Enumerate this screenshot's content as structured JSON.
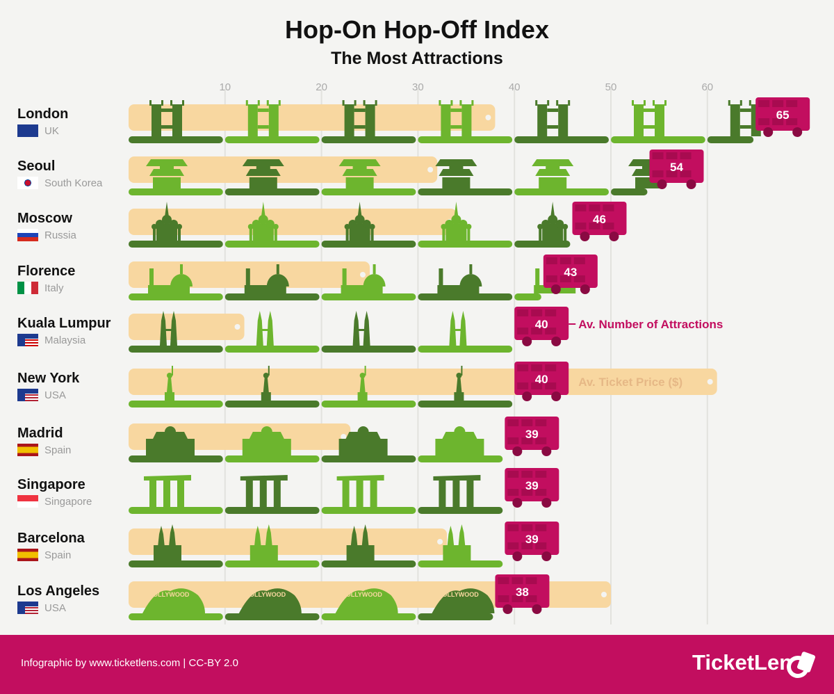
{
  "header": {
    "title": "Hop-On Hop-Off Index",
    "subtitle": "The Most Attractions"
  },
  "legend": {
    "attractions_label": "Av. Number of Attractions",
    "price_label": "Av. Ticket Price ($)"
  },
  "colors": {
    "green_dark": "#4a7a2b",
    "green_light": "#6db52e",
    "ticket": "#f8d7a0",
    "bus": "#c20e5f",
    "footer": "#c20e5f",
    "grid": "#e2e2de",
    "axis_text": "#aaaaaa"
  },
  "chart_data": {
    "type": "bar",
    "title": "Hop-On Hop-Off Index",
    "subtitle": "The Most Attractions",
    "x_ticks": [
      10,
      20,
      30,
      40,
      50,
      60
    ],
    "xlim": [
      0,
      65
    ],
    "grid": true,
    "categories": [
      "London",
      "Seoul",
      "Moscow",
      "Florence",
      "Kuala Lumpur",
      "New York",
      "Madrid",
      "Singapore",
      "Barcelona",
      "Los Angeles"
    ],
    "series": [
      {
        "name": "Av. Number of Attractions",
        "values": [
          65,
          54,
          46,
          43,
          40,
          40,
          39,
          39,
          39,
          38
        ]
      },
      {
        "name": "Av. Ticket Price ($)",
        "values": [
          38,
          32,
          34,
          25,
          12,
          61,
          23,
          0,
          33,
          50
        ]
      }
    ]
  },
  "rows": [
    {
      "city": "London",
      "country": "UK",
      "flag": "uk",
      "landmark": "tower-bridge"
    },
    {
      "city": "Seoul",
      "country": "South Korea",
      "flag": "kr",
      "landmark": "gate"
    },
    {
      "city": "Moscow",
      "country": "Russia",
      "flag": "ru",
      "landmark": "kremlin"
    },
    {
      "city": "Florence",
      "country": "Italy",
      "flag": "it",
      "landmark": "duomo"
    },
    {
      "city": "Kuala Lumpur",
      "country": "Malaysia",
      "flag": "my",
      "landmark": "twin-towers"
    },
    {
      "city": "New York",
      "country": "USA",
      "flag": "us",
      "landmark": "liberty"
    },
    {
      "city": "Madrid",
      "country": "Spain",
      "flag": "es",
      "landmark": "puerta"
    },
    {
      "city": "Singapore",
      "country": "Singapore",
      "flag": "sg",
      "landmark": "marina-bay"
    },
    {
      "city": "Barcelona",
      "country": "Spain",
      "flag": "es",
      "landmark": "sagrada"
    },
    {
      "city": "Los Angeles",
      "country": "USA",
      "flag": "us",
      "landmark": "hollywood"
    }
  ],
  "hollywood_text": "HOLLYWOOD",
  "footer": {
    "credit": "Infographic by www.ticketlens.com | CC-BY 2.0",
    "brand": "TicketLens"
  }
}
